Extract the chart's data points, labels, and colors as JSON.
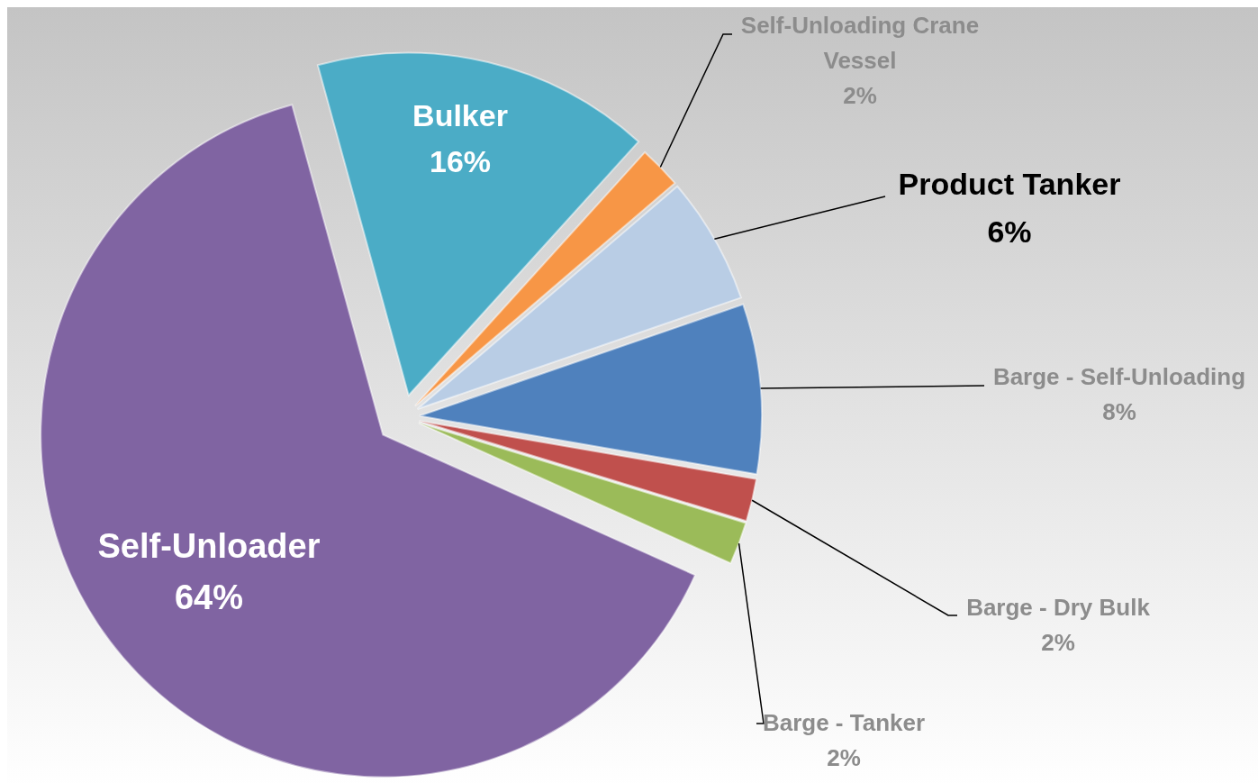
{
  "chart_data": {
    "type": "pie",
    "categories": [
      "Bulker",
      "Self-Unloading Crane Vessel",
      "Product Tanker",
      "Barge - Self-Unloading",
      "Barge - Dry Bulk",
      "Barge - Tanker",
      "Self-Unloader"
    ],
    "values": [
      16,
      2,
      6,
      8,
      2,
      2,
      64
    ],
    "value_labels": [
      "16%",
      "2%",
      "6%",
      "8%",
      "2%",
      "2%",
      "64%"
    ],
    "colors": [
      "#4bacc6",
      "#f79646",
      "#b9cde5",
      "#4f81bd",
      "#c0504d",
      "#9bbb59",
      "#8064a2"
    ]
  }
}
